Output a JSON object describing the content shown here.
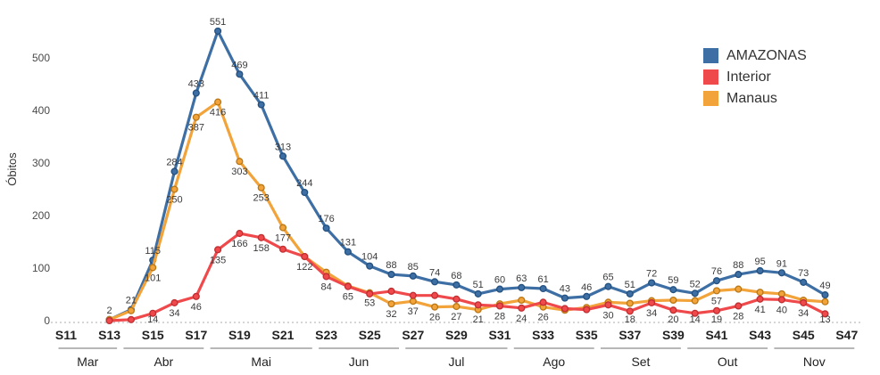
{
  "chart_data": {
    "type": "line",
    "title": "",
    "ylabel": "Óbitos",
    "xlabel": "",
    "grid": false,
    "legend_position": "top-right",
    "ylim": [
      0,
      560
    ],
    "y_ticks": [
      0,
      100,
      200,
      300,
      400,
      500
    ],
    "x_ticks": [
      "S11",
      "S13",
      "S15",
      "S17",
      "S19",
      "S21",
      "S23",
      "S25",
      "S27",
      "S29",
      "S31",
      "S33",
      "S35",
      "S37",
      "S39",
      "S41",
      "S43",
      "S45",
      "S47"
    ],
    "months": [
      {
        "label": "Mar",
        "from": 11,
        "to": 13
      },
      {
        "label": "Abr",
        "from": 14,
        "to": 17
      },
      {
        "label": "Mai",
        "from": 18,
        "to": 22
      },
      {
        "label": "Jun",
        "from": 23,
        "to": 26
      },
      {
        "label": "Jul",
        "from": 27,
        "to": 31
      },
      {
        "label": "Ago",
        "from": 32,
        "to": 35
      },
      {
        "label": "Set",
        "from": 36,
        "to": 39
      },
      {
        "label": "Out",
        "from": 40,
        "to": 43
      },
      {
        "label": "Nov",
        "from": 44,
        "to": 47
      }
    ],
    "weeks": [
      13,
      14,
      15,
      16,
      17,
      18,
      19,
      20,
      21,
      22,
      23,
      24,
      25,
      26,
      27,
      28,
      29,
      30,
      31,
      32,
      33,
      34,
      35,
      36,
      37,
      38,
      39,
      40,
      41,
      42,
      43,
      44,
      45,
      46
    ],
    "series": [
      {
        "name": "AMAZONAS",
        "color": "#3d6fa5",
        "marker_stroke": "#24507f",
        "label_position": "above",
        "values": [
          2,
          21,
          115,
          284,
          433,
          551,
          469,
          411,
          313,
          244,
          176,
          131,
          104,
          88,
          85,
          74,
          68,
          51,
          60,
          63,
          61,
          43,
          46,
          65,
          51,
          72,
          59,
          52,
          76,
          88,
          95,
          91,
          73,
          49
        ],
        "labels": [
          2,
          21,
          115,
          284,
          433,
          551,
          469,
          411,
          313,
          244,
          176,
          131,
          104,
          88,
          85,
          74,
          68,
          51,
          60,
          63,
          61,
          43,
          46,
          65,
          51,
          72,
          59,
          52,
          76,
          88,
          95,
          91,
          73,
          49
        ]
      },
      {
        "name": "Manaus",
        "color": "#f2a33a",
        "marker_stroke": "#b97716",
        "label_position": "below",
        "values": [
          2,
          19,
          101,
          250,
          387,
          416,
          303,
          253,
          177,
          122,
          92,
          66,
          53,
          32,
          37,
          26,
          27,
          21,
          32,
          39,
          26,
          20,
          25,
          35,
          33,
          38,
          39,
          38,
          57,
          60,
          54,
          51,
          39,
          36
        ],
        "labels": [
          null,
          null,
          101,
          250,
          387,
          416,
          303,
          253,
          177,
          122,
          null,
          null,
          53,
          32,
          37,
          26,
          27,
          21,
          null,
          null,
          26,
          null,
          null,
          null,
          null,
          null,
          null,
          null,
          57,
          null,
          null,
          null,
          null,
          null
        ]
      },
      {
        "name": "Interior",
        "color": "#f0494c",
        "marker_stroke": "#bf2e31",
        "label_position": "below",
        "values": [
          0,
          2,
          14,
          34,
          46,
          135,
          166,
          158,
          136,
          122,
          84,
          65,
          51,
          56,
          48,
          48,
          41,
          30,
          28,
          24,
          35,
          23,
          21,
          30,
          18,
          34,
          20,
          14,
          19,
          28,
          41,
          40,
          34,
          13
        ],
        "labels": [
          null,
          null,
          14,
          34,
          46,
          135,
          166,
          158,
          null,
          null,
          84,
          65,
          null,
          null,
          null,
          null,
          null,
          null,
          28,
          24,
          null,
          null,
          null,
          30,
          18,
          34,
          20,
          14,
          19,
          28,
          41,
          40,
          34,
          13
        ]
      }
    ],
    "legend": [
      {
        "label": "AMAZONAS",
        "color": "#3d6fa5"
      },
      {
        "label": "Interior",
        "color": "#f0494c"
      },
      {
        "label": "Manaus",
        "color": "#f2a33a"
      }
    ],
    "baseline_color": "#c8c8c8",
    "month_bar_color": "#9f9f9f"
  }
}
